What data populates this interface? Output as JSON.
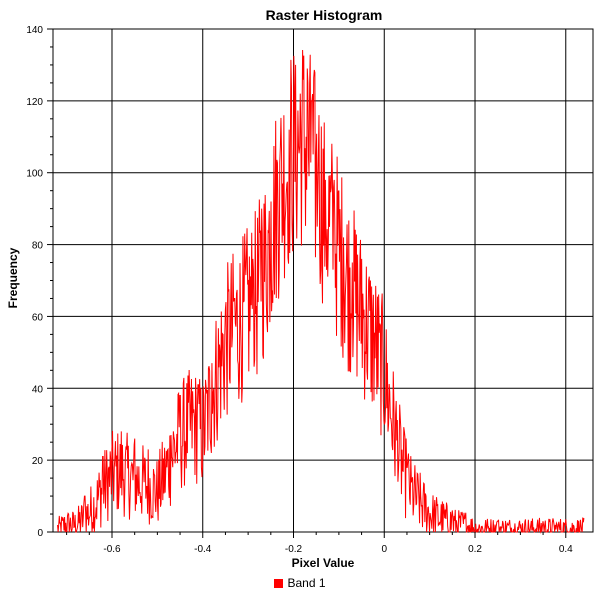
{
  "chart_data": {
    "type": "line",
    "title": "Raster Histogram",
    "xlabel": "Pixel Value",
    "ylabel": "Frequency",
    "xlim": [
      -0.73,
      0.46
    ],
    "ylim": [
      0,
      140
    ],
    "xticks": [
      -0.6,
      -0.4,
      -0.2,
      0,
      0.2,
      0.4
    ],
    "xtick_labels": [
      "-0.6",
      "-0.4",
      "-0.2",
      "0",
      "0.2",
      "0.4"
    ],
    "yticks": [
      0,
      20,
      40,
      60,
      80,
      100,
      120,
      140
    ],
    "ytick_labels": [
      "0",
      "20",
      "40",
      "60",
      "80",
      "100",
      "120",
      "140"
    ],
    "grid": true,
    "legend": "bottom-center",
    "series": [
      {
        "name": "Band 1",
        "color": "#ff0000",
        "x": [
          -0.72,
          -0.7,
          -0.68,
          -0.66,
          -0.64,
          -0.62,
          -0.6,
          -0.58,
          -0.56,
          -0.54,
          -0.52,
          -0.5,
          -0.48,
          -0.46,
          -0.44,
          -0.42,
          -0.4,
          -0.38,
          -0.36,
          -0.34,
          -0.32,
          -0.3,
          -0.28,
          -0.26,
          -0.24,
          -0.22,
          -0.2,
          -0.18,
          -0.16,
          -0.14,
          -0.12,
          -0.1,
          -0.08,
          -0.06,
          -0.04,
          -0.02,
          0.0,
          0.02,
          0.04,
          0.06,
          0.08,
          0.1,
          0.12,
          0.14,
          0.16,
          0.18,
          0.2,
          0.22,
          0.24,
          0.26,
          0.28,
          0.3,
          0.32,
          0.34,
          0.36,
          0.38,
          0.4,
          0.42,
          0.44
        ],
        "y": [
          1,
          2,
          2,
          4,
          7,
          12,
          16,
          17,
          15,
          14,
          13,
          11,
          17,
          24,
          28,
          30,
          27,
          38,
          48,
          55,
          58,
          62,
          66,
          76,
          90,
          100,
          106,
          110,
          103,
          94,
          86,
          78,
          70,
          64,
          58,
          52,
          44,
          30,
          18,
          11,
          8,
          5,
          4,
          3,
          2,
          2,
          1,
          1,
          1,
          1,
          1,
          1,
          1,
          1,
          1,
          1,
          1,
          1,
          1
        ],
        "peaks_x": [
          -0.66,
          -0.62,
          -0.58,
          -0.55,
          -0.52,
          -0.47,
          -0.45,
          -0.41,
          -0.38,
          -0.35,
          -0.33,
          -0.31,
          -0.29,
          -0.27,
          -0.25,
          -0.23,
          -0.21,
          -0.195,
          -0.185,
          -0.17,
          -0.16,
          -0.145,
          -0.13,
          -0.11,
          -0.09,
          -0.07,
          -0.05,
          -0.03,
          -0.01,
          0.01,
          0.03,
          0.05,
          0.08,
          0.11,
          0.15,
          0.25,
          0.35
        ],
        "peaks_y": [
          10,
          21,
          28,
          26,
          23,
          27,
          38,
          41,
          47,
          62,
          65,
          64,
          76,
          90,
          92,
          103,
          112,
          130,
          122,
          129,
          120,
          105,
          98,
          98,
          82,
          75,
          76,
          70,
          58,
          30,
          14,
          18,
          10,
          6,
          6,
          3,
          3
        ]
      }
    ]
  }
}
